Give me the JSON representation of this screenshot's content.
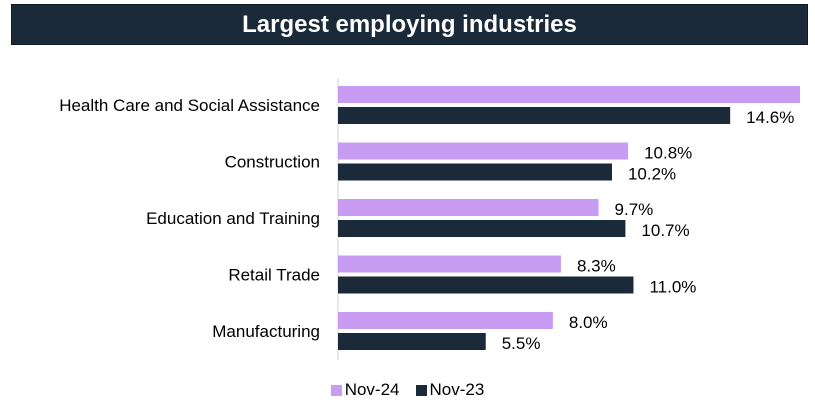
{
  "chart_data": {
    "type": "bar",
    "orientation": "horizontal",
    "title": "Largest employing industries",
    "categories": [
      "Health Care and Social Assistance",
      "Construction",
      "Education and Training",
      "Retail Trade",
      "Manufacturing"
    ],
    "series": [
      {
        "name": "Nov-24",
        "color": "#c79cf2",
        "values": [
          17.2,
          10.8,
          9.7,
          8.3,
          8.0
        ],
        "labels": [
          "",
          "10.8%",
          "9.7%",
          "8.3%",
          "8.0%"
        ]
      },
      {
        "name": "Nov-23",
        "color": "#1a2a38",
        "values": [
          14.6,
          10.2,
          10.7,
          11.0,
          5.5
        ],
        "labels": [
          "14.6%",
          "10.2%",
          "10.7%",
          "11.0%",
          "5.5%"
        ]
      }
    ],
    "xlim": [
      0,
      17.2
    ],
    "legend": "bottom",
    "grid": false
  }
}
